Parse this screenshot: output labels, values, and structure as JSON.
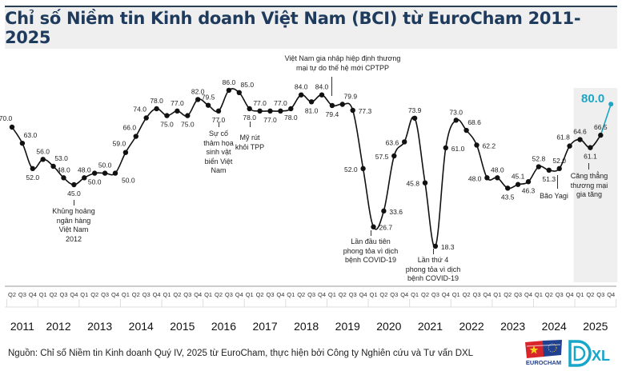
{
  "title": "Chỉ số Niềm tin Kinh doanh Việt Nam (BCI) từ EuroCham 2011-2025",
  "chart_data": {
    "type": "line",
    "title": "Chỉ số Niềm tin Kinh doanh Việt Nam (BCI) từ EuroCham 2011-2025",
    "years": [
      "2011",
      "2012",
      "2013",
      "2014",
      "2015",
      "2016",
      "2017",
      "2018",
      "2019",
      "2020",
      "2021",
      "2022",
      "2023",
      "2024",
      "2025"
    ],
    "quarters_first_year": [
      "Q2",
      "Q3",
      "Q4"
    ],
    "quarters": [
      "Q1",
      "Q2",
      "Q3",
      "Q4"
    ],
    "values": [
      70.0,
      63.0,
      52.0,
      56.0,
      53.0,
      48.0,
      45.0,
      48.0,
      50.0,
      50.0,
      50.0,
      59.0,
      66.0,
      74.0,
      78.0,
      75.0,
      77.0,
      75.0,
      82.0,
      79.5,
      77.0,
      86.0,
      85.0,
      78.0,
      77.0,
      77.0,
      77.0,
      78.0,
      84.0,
      81.0,
      84.0,
      79.4,
      79.9,
      77.3,
      52.0,
      26.7,
      33.6,
      57.5,
      63.6,
      73.9,
      45.8,
      18.3,
      61.0,
      73.0,
      68.6,
      62.2,
      48.0,
      48.0,
      43.5,
      45.1,
      46.3,
      52.8,
      51.3,
      52.0,
      61.8,
      64.6,
      61.1,
      66.5,
      80.0
    ],
    "highlight": {
      "period": "2025",
      "latest_value": 80.0,
      "color": "#1aa6c4"
    },
    "line_color": "#111111",
    "shade_color": "#efefef",
    "ylim": [
      15,
      90
    ],
    "grid": false,
    "annotations": [
      {
        "quarter": "2012 Q4",
        "text": [
          "Khủng hoảng",
          "ngân hàng",
          "Việt Nam",
          "2012"
        ]
      },
      {
        "quarter": "2016 Q2",
        "text": [
          "Sự cố",
          "thảm họa",
          "sinh vật",
          "biển Việt",
          "Nam"
        ]
      },
      {
        "quarter": "2017 Q1",
        "text": [
          "Mỹ rút",
          "khỏi TPP"
        ]
      },
      {
        "quarter": "2019 Q1",
        "text": [
          "Việt Nam gia nhập hiệp định thương",
          "mại tự do thế hệ mới CPTPP"
        ]
      },
      {
        "quarter": "2020 Q1",
        "text": [
          "Lần đầu tiên",
          "phong tỏa vì dịch",
          "bệnh COVID-19"
        ]
      },
      {
        "quarter": "2021 Q3",
        "text": [
          "Lần thứ 4",
          "phong tỏa vì dịch",
          "bệnh COVID-19"
        ]
      },
      {
        "quarter": "2024 Q3",
        "text": [
          "Bão Yagi"
        ]
      },
      {
        "quarter": "2025 Q2",
        "text": [
          "Căng thẳng",
          "thương mại",
          "gia tăng"
        ]
      }
    ]
  },
  "source": "Nguồn: Chỉ số Niềm tin Kinh doanh Quý IV, 2025 từ EuroCham, thực hiện bởi Công ty Nghiên cứu và Tư vấn DXL",
  "logos": {
    "eurocham": "EUROCHAM",
    "dxl": "DXL"
  }
}
